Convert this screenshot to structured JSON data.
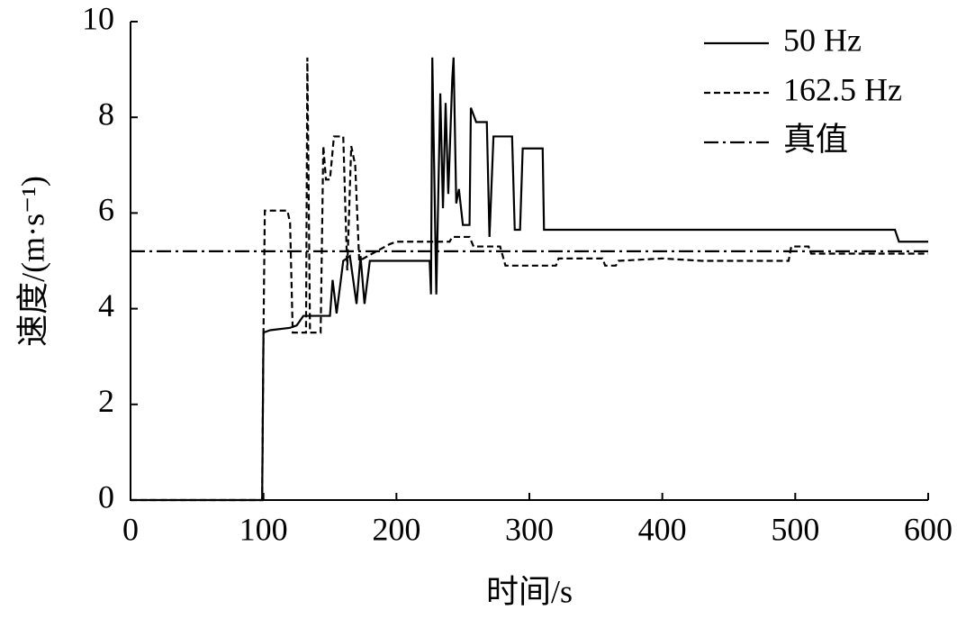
{
  "chart_data": {
    "type": "line",
    "xlabel": "时间/s",
    "ylabel": "速度/(m·s⁻¹)",
    "xlim": [
      0,
      600
    ],
    "xticks": [
      0,
      100,
      200,
      300,
      400,
      500,
      600
    ],
    "ylim": [
      0,
      10
    ],
    "yticks": [
      0,
      2,
      4,
      6,
      8,
      10
    ],
    "legend": "upper right",
    "series": [
      {
        "name": "50 Hz",
        "color": "#000000",
        "dash": "solid",
        "x": [
          0,
          99,
          100,
          105,
          120,
          125,
          130,
          150,
          152,
          155,
          160,
          165,
          170,
          173,
          176,
          180,
          225,
          226,
          227,
          230,
          233,
          235,
          237,
          239,
          242,
          243,
          245,
          247,
          250,
          255,
          256,
          260,
          268,
          270,
          273,
          287,
          289,
          293,
          295,
          310,
          311,
          575,
          578,
          600
        ],
        "values": [
          0,
          0,
          3.5,
          3.55,
          3.6,
          3.65,
          3.85,
          3.85,
          4.6,
          3.9,
          5.0,
          5.1,
          4.1,
          5.1,
          4.1,
          5.0,
          5.0,
          4.3,
          9.25,
          4.3,
          8.5,
          6.1,
          8.3,
          6.4,
          8.8,
          9.25,
          6.2,
          6.5,
          5.75,
          5.75,
          8.2,
          7.9,
          7.9,
          5.5,
          7.6,
          7.6,
          5.65,
          5.65,
          7.35,
          7.35,
          5.65,
          5.65,
          5.4,
          5.4
        ]
      },
      {
        "name": "162.5 Hz",
        "color": "#000000",
        "dash": "dashed",
        "x": [
          0,
          99,
          100,
          101,
          118,
          120,
          122,
          132,
          133,
          135,
          143,
          145,
          147,
          150,
          153,
          160,
          163,
          166,
          169,
          172,
          185,
          195,
          200,
          240,
          242,
          255,
          258,
          278,
          282,
          320,
          322,
          355,
          357,
          365,
          367,
          400,
          430,
          495,
          497,
          510,
          512,
          600
        ],
        "values": [
          0,
          0,
          3.5,
          6.05,
          6.05,
          5.8,
          3.5,
          3.5,
          9.25,
          3.5,
          3.5,
          7.4,
          6.7,
          6.7,
          7.6,
          7.6,
          4.8,
          7.4,
          7.0,
          5.0,
          5.2,
          5.35,
          5.4,
          5.4,
          5.5,
          5.5,
          5.3,
          5.3,
          4.9,
          4.9,
          5.05,
          5.05,
          4.9,
          4.9,
          5.0,
          5.05,
          5.0,
          5.0,
          5.3,
          5.3,
          5.15,
          5.15
        ]
      },
      {
        "name": "真值",
        "color": "#000000",
        "dash": "dashdot",
        "x": [
          0,
          600
        ],
        "values": [
          5.2,
          5.2
        ]
      }
    ]
  }
}
